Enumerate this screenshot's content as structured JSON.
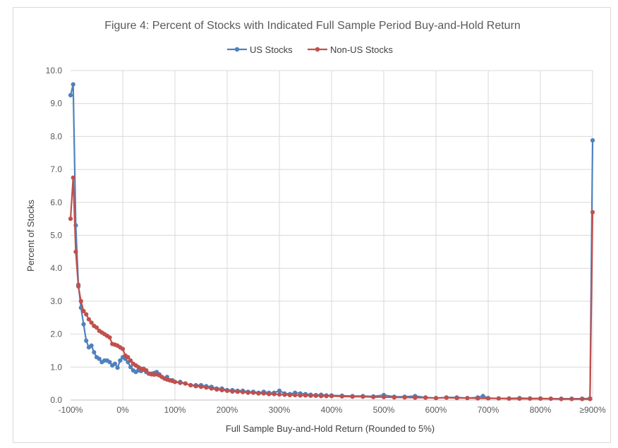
{
  "chart_data": {
    "type": "line",
    "title": "Figure 4: Percent of Stocks with Indicated Full Sample Period Buy-and-Hold Return",
    "xlabel": "Full Sample Buy-and-Hold Return (Rounded to 5%)",
    "ylabel": "Percent of Stocks",
    "xlim": [
      -100,
      900
    ],
    "ylim": [
      0,
      10
    ],
    "grid": true,
    "legend_position": "top-center",
    "x_ticks": [
      {
        "value": -100,
        "label": "-100%"
      },
      {
        "value": 0,
        "label": "0%"
      },
      {
        "value": 100,
        "label": "100%"
      },
      {
        "value": 200,
        "label": "200%"
      },
      {
        "value": 300,
        "label": "300%"
      },
      {
        "value": 400,
        "label": "400%"
      },
      {
        "value": 500,
        "label": "500%"
      },
      {
        "value": 600,
        "label": "600%"
      },
      {
        "value": 700,
        "label": "700%"
      },
      {
        "value": 800,
        "label": "800%"
      },
      {
        "value": 900,
        "label": "≥900%"
      }
    ],
    "y_ticks": [
      {
        "value": 0,
        "label": "0.0"
      },
      {
        "value": 1,
        "label": "1.0"
      },
      {
        "value": 2,
        "label": "2.0"
      },
      {
        "value": 3,
        "label": "3.0"
      },
      {
        "value": 4,
        "label": "4.0"
      },
      {
        "value": 5,
        "label": "5.0"
      },
      {
        "value": 6,
        "label": "6.0"
      },
      {
        "value": 7,
        "label": "7.0"
      },
      {
        "value": 8,
        "label": "8.0"
      },
      {
        "value": 9,
        "label": "9.0"
      },
      {
        "value": 10,
        "label": "10.0"
      }
    ],
    "series": [
      {
        "name": "US Stocks",
        "color": "#4f81bd",
        "points": [
          [
            -100,
            9.25
          ],
          [
            -95,
            9.58
          ],
          [
            -90,
            5.3
          ],
          [
            -85,
            3.5
          ],
          [
            -80,
            2.8
          ],
          [
            -75,
            2.3
          ],
          [
            -70,
            1.8
          ],
          [
            -65,
            1.6
          ],
          [
            -60,
            1.65
          ],
          [
            -55,
            1.45
          ],
          [
            -50,
            1.3
          ],
          [
            -45,
            1.25
          ],
          [
            -40,
            1.15
          ],
          [
            -35,
            1.2
          ],
          [
            -30,
            1.2
          ],
          [
            -25,
            1.15
          ],
          [
            -20,
            1.05
          ],
          [
            -15,
            1.1
          ],
          [
            -10,
            0.98
          ],
          [
            -5,
            1.2
          ],
          [
            0,
            1.3
          ],
          [
            5,
            1.25
          ],
          [
            10,
            1.15
          ],
          [
            15,
            1.0
          ],
          [
            20,
            0.9
          ],
          [
            25,
            0.85
          ],
          [
            30,
            0.9
          ],
          [
            35,
            0.88
          ],
          [
            40,
            0.95
          ],
          [
            45,
            0.85
          ],
          [
            50,
            0.8
          ],
          [
            55,
            0.8
          ],
          [
            60,
            0.82
          ],
          [
            65,
            0.85
          ],
          [
            70,
            0.78
          ],
          [
            75,
            0.7
          ],
          [
            80,
            0.65
          ],
          [
            85,
            0.7
          ],
          [
            90,
            0.6
          ],
          [
            95,
            0.6
          ],
          [
            100,
            0.55
          ],
          [
            110,
            0.55
          ],
          [
            120,
            0.5
          ],
          [
            130,
            0.45
          ],
          [
            140,
            0.45
          ],
          [
            150,
            0.45
          ],
          [
            160,
            0.42
          ],
          [
            170,
            0.4
          ],
          [
            180,
            0.35
          ],
          [
            190,
            0.35
          ],
          [
            200,
            0.3
          ],
          [
            210,
            0.3
          ],
          [
            220,
            0.28
          ],
          [
            230,
            0.28
          ],
          [
            240,
            0.25
          ],
          [
            250,
            0.25
          ],
          [
            260,
            0.22
          ],
          [
            270,
            0.25
          ],
          [
            280,
            0.22
          ],
          [
            290,
            0.22
          ],
          [
            300,
            0.28
          ],
          [
            310,
            0.2
          ],
          [
            320,
            0.18
          ],
          [
            330,
            0.22
          ],
          [
            340,
            0.2
          ],
          [
            350,
            0.18
          ],
          [
            360,
            0.16
          ],
          [
            370,
            0.15
          ],
          [
            380,
            0.16
          ],
          [
            390,
            0.14
          ],
          [
            400,
            0.14
          ],
          [
            420,
            0.13
          ],
          [
            440,
            0.12
          ],
          [
            460,
            0.12
          ],
          [
            480,
            0.11
          ],
          [
            500,
            0.15
          ],
          [
            520,
            0.1
          ],
          [
            540,
            0.1
          ],
          [
            560,
            0.12
          ],
          [
            580,
            0.08
          ],
          [
            600,
            0.06
          ],
          [
            620,
            0.08
          ],
          [
            640,
            0.08
          ],
          [
            660,
            0.06
          ],
          [
            680,
            0.08
          ],
          [
            690,
            0.12
          ],
          [
            700,
            0.06
          ],
          [
            720,
            0.05
          ],
          [
            740,
            0.05
          ],
          [
            760,
            0.06
          ],
          [
            780,
            0.05
          ],
          [
            800,
            0.05
          ],
          [
            820,
            0.04
          ],
          [
            840,
            0.04
          ],
          [
            860,
            0.04
          ],
          [
            880,
            0.04
          ],
          [
            895,
            0.05
          ],
          [
            900,
            7.88
          ]
        ]
      },
      {
        "name": "Non-US Stocks",
        "color": "#c0504d",
        "points": [
          [
            -100,
            5.5
          ],
          [
            -95,
            6.75
          ],
          [
            -90,
            4.5
          ],
          [
            -85,
            3.45
          ],
          [
            -80,
            3.0
          ],
          [
            -75,
            2.7
          ],
          [
            -70,
            2.6
          ],
          [
            -65,
            2.45
          ],
          [
            -60,
            2.35
          ],
          [
            -55,
            2.25
          ],
          [
            -50,
            2.2
          ],
          [
            -45,
            2.1
          ],
          [
            -40,
            2.05
          ],
          [
            -35,
            2.0
          ],
          [
            -30,
            1.95
          ],
          [
            -25,
            1.9
          ],
          [
            -20,
            1.7
          ],
          [
            -15,
            1.68
          ],
          [
            -10,
            1.65
          ],
          [
            -5,
            1.6
          ],
          [
            0,
            1.55
          ],
          [
            5,
            1.35
          ],
          [
            10,
            1.3
          ],
          [
            15,
            1.2
          ],
          [
            20,
            1.1
          ],
          [
            25,
            1.05
          ],
          [
            30,
            1.0
          ],
          [
            35,
            0.95
          ],
          [
            40,
            0.92
          ],
          [
            45,
            0.9
          ],
          [
            50,
            0.8
          ],
          [
            55,
            0.78
          ],
          [
            60,
            0.77
          ],
          [
            65,
            0.78
          ],
          [
            70,
            0.75
          ],
          [
            75,
            0.7
          ],
          [
            80,
            0.65
          ],
          [
            85,
            0.62
          ],
          [
            90,
            0.6
          ],
          [
            95,
            0.58
          ],
          [
            100,
            0.55
          ],
          [
            110,
            0.52
          ],
          [
            120,
            0.5
          ],
          [
            130,
            0.45
          ],
          [
            140,
            0.42
          ],
          [
            150,
            0.4
          ],
          [
            160,
            0.38
          ],
          [
            170,
            0.35
          ],
          [
            180,
            0.32
          ],
          [
            190,
            0.3
          ],
          [
            200,
            0.28
          ],
          [
            210,
            0.26
          ],
          [
            220,
            0.25
          ],
          [
            230,
            0.24
          ],
          [
            240,
            0.22
          ],
          [
            250,
            0.22
          ],
          [
            260,
            0.2
          ],
          [
            270,
            0.2
          ],
          [
            280,
            0.18
          ],
          [
            290,
            0.18
          ],
          [
            300,
            0.17
          ],
          [
            310,
            0.16
          ],
          [
            320,
            0.15
          ],
          [
            330,
            0.15
          ],
          [
            340,
            0.14
          ],
          [
            350,
            0.14
          ],
          [
            360,
            0.13
          ],
          [
            370,
            0.13
          ],
          [
            380,
            0.12
          ],
          [
            390,
            0.12
          ],
          [
            400,
            0.12
          ],
          [
            420,
            0.11
          ],
          [
            440,
            0.1
          ],
          [
            460,
            0.1
          ],
          [
            480,
            0.09
          ],
          [
            500,
            0.09
          ],
          [
            520,
            0.08
          ],
          [
            540,
            0.08
          ],
          [
            560,
            0.07
          ],
          [
            580,
            0.07
          ],
          [
            600,
            0.06
          ],
          [
            620,
            0.07
          ],
          [
            640,
            0.06
          ],
          [
            660,
            0.06
          ],
          [
            680,
            0.05
          ],
          [
            700,
            0.05
          ],
          [
            720,
            0.05
          ],
          [
            740,
            0.04
          ],
          [
            760,
            0.04
          ],
          [
            780,
            0.04
          ],
          [
            800,
            0.04
          ],
          [
            820,
            0.04
          ],
          [
            840,
            0.03
          ],
          [
            860,
            0.03
          ],
          [
            880,
            0.03
          ],
          [
            895,
            0.03
          ],
          [
            900,
            5.7
          ]
        ]
      }
    ]
  }
}
